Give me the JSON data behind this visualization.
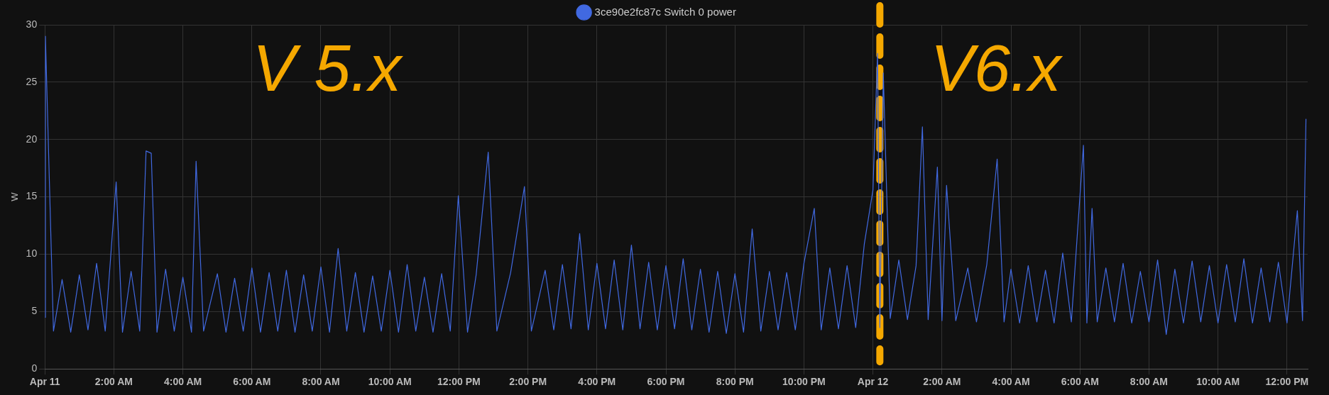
{
  "chart_data": {
    "type": "line",
    "ylabel": "W",
    "annotations": [
      "V 5.x",
      "V6.x"
    ],
    "xlim": [
      "--04-11T00:00",
      "--04-12T12:36"
    ],
    "ylim": [
      0,
      30
    ],
    "yticks": [
      0,
      5,
      10,
      15,
      20,
      25,
      30
    ],
    "xticks": [
      {
        "value": "--04-11T00:00",
        "label": "Apr 11"
      },
      {
        "value": "--04-11T02:00",
        "label": "2:00 AM"
      },
      {
        "value": "--04-11T04:00",
        "label": "4:00 AM"
      },
      {
        "value": "--04-11T06:00",
        "label": "6:00 AM"
      },
      {
        "value": "--04-11T08:00",
        "label": "8:00 AM"
      },
      {
        "value": "--04-11T10:00",
        "label": "10:00 AM"
      },
      {
        "value": "--04-11T12:00",
        "label": "12:00 PM"
      },
      {
        "value": "--04-11T14:00",
        "label": "2:00 PM"
      },
      {
        "value": "--04-11T16:00",
        "label": "4:00 PM"
      },
      {
        "value": "--04-11T18:00",
        "label": "6:00 PM"
      },
      {
        "value": "--04-11T20:00",
        "label": "8:00 PM"
      },
      {
        "value": "--04-11T22:00",
        "label": "10:00 PM"
      },
      {
        "value": "--04-12T00:00",
        "label": "Apr 12"
      },
      {
        "value": "--04-12T02:00",
        "label": "2:00 AM"
      },
      {
        "value": "--04-12T04:00",
        "label": "4:00 AM"
      },
      {
        "value": "--04-12T06:00",
        "label": "6:00 AM"
      },
      {
        "value": "--04-12T08:00",
        "label": "8:00 AM"
      },
      {
        "value": "--04-12T10:00",
        "label": "10:00 AM"
      },
      {
        "value": "--04-12T12:00",
        "label": "12:00 PM"
      }
    ],
    "grid": true,
    "legend": "top",
    "marker": "none",
    "ref_lines": [
      {
        "axis": "x",
        "value": "--04-12T00:12",
        "color": "#f5a800",
        "line_style": "dashed"
      }
    ],
    "series": [
      {
        "name": "3ce90e2fc87c Switch 0 power",
        "color": "#4169e1",
        "x": [
          "--04-11T00:00",
          "--04-11T00:01",
          "--04-11T00:15",
          "--04-11T00:30",
          "--04-11T00:45",
          "--04-11T01:00",
          "--04-11T01:15",
          "--04-11T01:30",
          "--04-11T01:45",
          "--04-11T02:04",
          "--04-11T02:15",
          "--04-11T02:30",
          "--04-11T02:45",
          "--04-11T02:56",
          "--04-11T03:05",
          "--04-11T03:15",
          "--04-11T03:30",
          "--04-11T03:45",
          "--04-11T04:00",
          "--04-11T04:15",
          "--04-11T04:23",
          "--04-11T04:36",
          "--04-11T05:00",
          "--04-11T05:15",
          "--04-11T05:30",
          "--04-11T05:45",
          "--04-11T06:00",
          "--04-11T06:15",
          "--04-11T06:30",
          "--04-11T06:45",
          "--04-11T07:00",
          "--04-11T07:15",
          "--04-11T07:30",
          "--04-11T07:45",
          "--04-11T08:00",
          "--04-11T08:15",
          "--04-11T08:30",
          "--04-11T08:45",
          "--04-11T09:00",
          "--04-11T09:15",
          "--04-11T09:30",
          "--04-11T09:45",
          "--04-11T10:00",
          "--04-11T10:15",
          "--04-11T10:30",
          "--04-11T10:45",
          "--04-11T11:00",
          "--04-11T11:15",
          "--04-11T11:30",
          "--04-11T11:45",
          "--04-11T11:59",
          "--04-11T12:15",
          "--04-11T12:30",
          "--04-11T12:51",
          "--04-11T13:06",
          "--04-11T13:30",
          "--04-11T13:54",
          "--04-11T14:06",
          "--04-11T14:30",
          "--04-11T14:45",
          "--04-11T15:00",
          "--04-11T15:15",
          "--04-11T15:30",
          "--04-11T15:45",
          "--04-11T16:00",
          "--04-11T16:15",
          "--04-11T16:30",
          "--04-11T16:45",
          "--04-11T17:00",
          "--04-11T17:15",
          "--04-11T17:30",
          "--04-11T17:45",
          "--04-11T18:00",
          "--04-11T18:15",
          "--04-11T18:30",
          "--04-11T18:45",
          "--04-11T19:00",
          "--04-11T19:15",
          "--04-11T19:30",
          "--04-11T19:45",
          "--04-11T20:00",
          "--04-11T20:15",
          "--04-11T20:30",
          "--04-11T20:45",
          "--04-11T21:00",
          "--04-11T21:15",
          "--04-11T21:30",
          "--04-11T21:45",
          "--04-11T22:00",
          "--04-11T22:18",
          "--04-11T22:30",
          "--04-11T22:45",
          "--04-11T23:00",
          "--04-11T23:15",
          "--04-11T23:30",
          "--04-11T23:45",
          "--04-12T00:00",
          "--04-12T00:08",
          "--04-12T00:12",
          "--04-12T00:18",
          "--04-12T00:30",
          "--04-12T00:45",
          "--04-12T01:00",
          "--04-12T01:15",
          "--04-12T01:26",
          "--04-12T01:36",
          "--04-12T01:52",
          "--04-12T02:00",
          "--04-12T02:08",
          "--04-12T02:24",
          "--04-12T02:45",
          "--04-12T03:00",
          "--04-12T03:18",
          "--04-12T03:36",
          "--04-12T03:48",
          "--04-12T04:00",
          "--04-12T04:15",
          "--04-12T04:30",
          "--04-12T04:45",
          "--04-12T05:00",
          "--04-12T05:15",
          "--04-12T05:30",
          "--04-12T05:45",
          "--04-12T06:06",
          "--04-12T06:12",
          "--04-12T06:21",
          "--04-12T06:30",
          "--04-12T06:45",
          "--04-12T07:00",
          "--04-12T07:15",
          "--04-12T07:30",
          "--04-12T07:45",
          "--04-12T08:00",
          "--04-12T08:15",
          "--04-12T08:30",
          "--04-12T08:45",
          "--04-12T09:00",
          "--04-12T09:15",
          "--04-12T09:30",
          "--04-12T09:45",
          "--04-12T10:00",
          "--04-12T10:15",
          "--04-12T10:30",
          "--04-12T10:45",
          "--04-12T11:00",
          "--04-12T11:15",
          "--04-12T11:30",
          "--04-12T11:45",
          "--04-12T12:00",
          "--04-12T12:18",
          "--04-12T12:27",
          "--04-12T12:33"
        ],
        "values": [
          4.5,
          29,
          3.3,
          7.8,
          3.2,
          8.2,
          3.4,
          9.2,
          3.3,
          16.3,
          3.2,
          8.5,
          3.3,
          19,
          18.8,
          3.2,
          8.7,
          3.3,
          8.0,
          3.2,
          18.1,
          3.3,
          8.3,
          3.2,
          7.9,
          3.3,
          8.8,
          3.2,
          8.4,
          3.3,
          8.6,
          3.2,
          8.2,
          3.3,
          8.9,
          3.2,
          10.5,
          3.3,
          8.4,
          3.2,
          8.1,
          3.3,
          8.6,
          3.2,
          9.1,
          3.3,
          8.0,
          3.2,
          8.3,
          3.3,
          15.1,
          3.2,
          8.2,
          18.9,
          3.3,
          8.4,
          15.9,
          3.3,
          8.6,
          3.4,
          9.1,
          3.5,
          11.8,
          3.4,
          9.2,
          3.5,
          9.5,
          3.4,
          10.8,
          3.5,
          9.3,
          3.4,
          9.0,
          3.5,
          9.6,
          3.4,
          8.7,
          3.2,
          8.5,
          3.1,
          8.3,
          3.2,
          12.2,
          3.3,
          8.5,
          3.4,
          8.4,
          3.4,
          9.2,
          14,
          3.4,
          8.8,
          3.5,
          9.0,
          3.6,
          10.9,
          15.6,
          27.5,
          3.6,
          25.8,
          4.4,
          9.5,
          4.3,
          9.0,
          21.1,
          4.3,
          17.6,
          4.2,
          16,
          4.2,
          8.8,
          4.1,
          9.1,
          18.3,
          4.1,
          8.7,
          4.0,
          9.0,
          4.1,
          8.6,
          4.0,
          10.1,
          4.1,
          19.5,
          4.0,
          14,
          4.1,
          8.8,
          4.1,
          9.2,
          4.0,
          8.5,
          4.1,
          9.5,
          3.0,
          8.7,
          4.0,
          9.4,
          4.1,
          9.0,
          4.0,
          9.1,
          4.1,
          9.6,
          4.0,
          8.8,
          4.1,
          9.3,
          4.0,
          13.8,
          4.2,
          21.8
        ]
      }
    ]
  }
}
